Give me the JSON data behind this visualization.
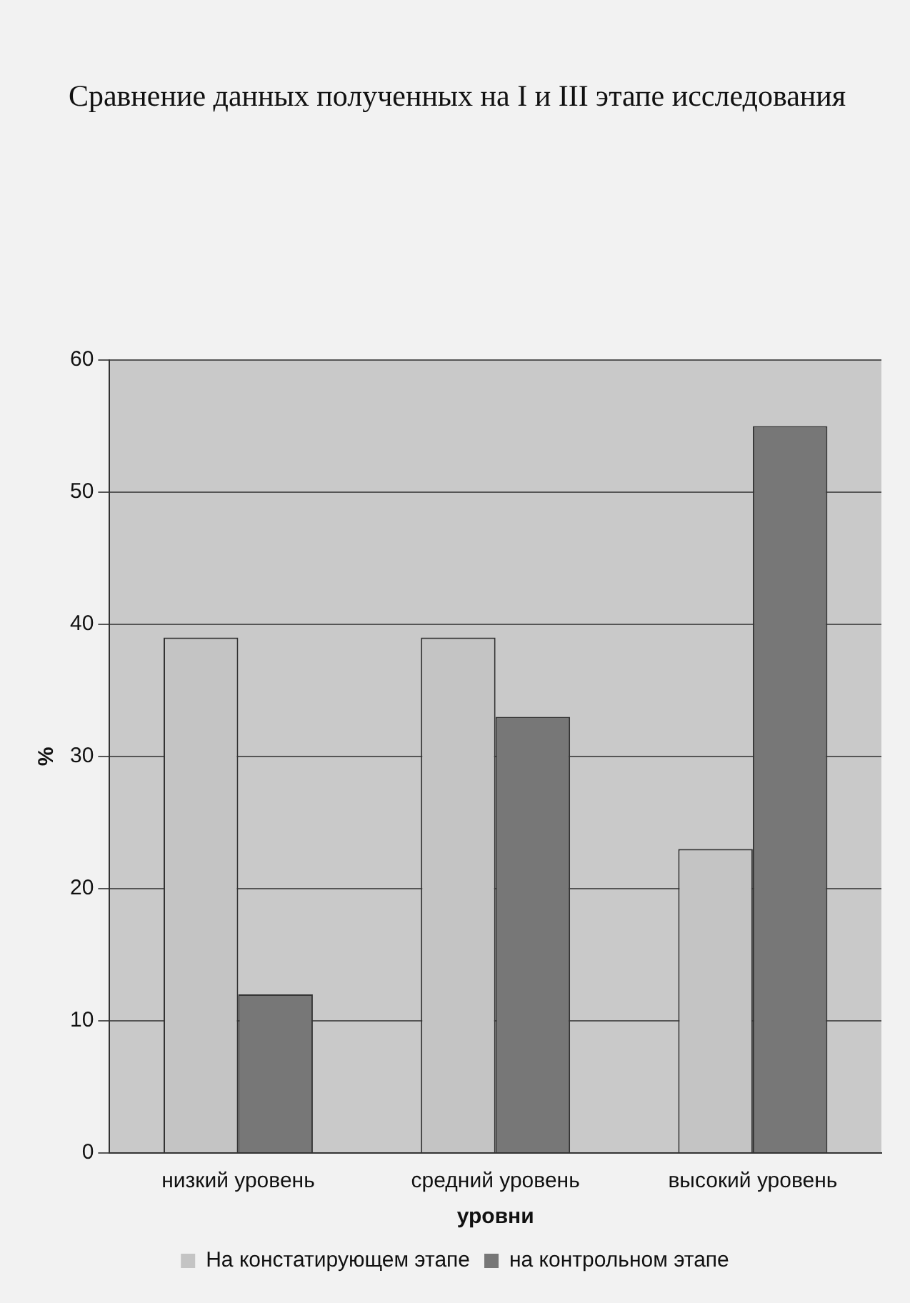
{
  "chart_data": {
    "type": "bar",
    "title": "Сравнение данных полученных на I и III этапе исследования",
    "xlabel": "уровни",
    "ylabel": "%",
    "categories": [
      "низкий уровень",
      "средний уровень",
      "высокий уровень"
    ],
    "series": [
      {
        "name": "На констатирующем этапе",
        "color": "#c4c4c4",
        "values": [
          39,
          39,
          23
        ]
      },
      {
        "name": "на контрольном этапе",
        "color": "#777777",
        "values": [
          12,
          33,
          55
        ]
      }
    ],
    "ylim": [
      0,
      60
    ],
    "yticks": [
      0,
      10,
      20,
      30,
      40,
      50,
      60
    ],
    "grid": "y",
    "legend": "bottom"
  }
}
